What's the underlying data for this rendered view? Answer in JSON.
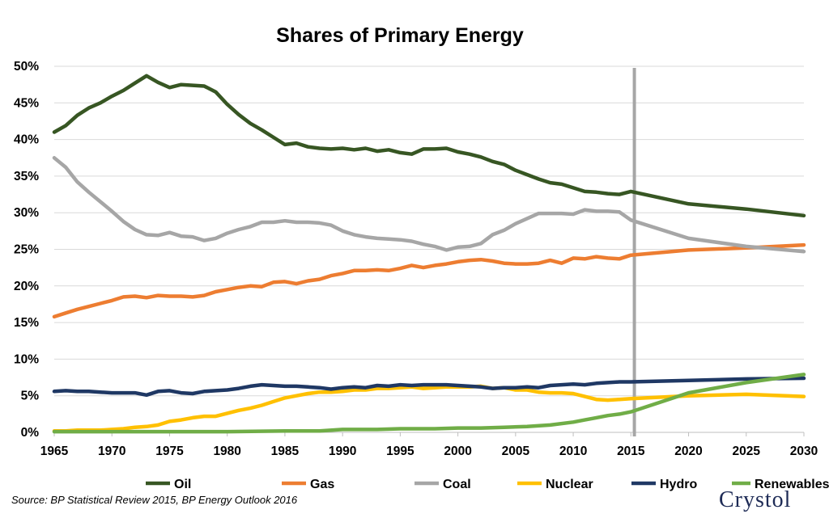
{
  "chart_data": {
    "type": "line",
    "title": "Shares of Primary Energy",
    "xlabel": "",
    "ylabel": "",
    "xlim": [
      1965,
      2030
    ],
    "ylim": [
      0,
      50
    ],
    "x_ticks": [
      "1965",
      "1970",
      "1975",
      "1980",
      "1985",
      "1990",
      "1995",
      "2000",
      "2005",
      "2010",
      "2015",
      "2020",
      "2025",
      "2030"
    ],
    "y_ticks": [
      "0%",
      "5%",
      "10%",
      "15%",
      "20%",
      "25%",
      "30%",
      "35%",
      "40%",
      "45%",
      "50%"
    ],
    "grid": "horizontal",
    "legend_position": "bottom",
    "marker_line": {
      "x": 2015.3,
      "color": "#a6a6a6"
    },
    "series": [
      {
        "name": "Oil",
        "color": "#375623",
        "points": [
          [
            1965,
            41.0
          ],
          [
            1966,
            41.9
          ],
          [
            1967,
            43.3
          ],
          [
            1968,
            44.3
          ],
          [
            1969,
            45.0
          ],
          [
            1970,
            45.9
          ],
          [
            1971,
            46.7
          ],
          [
            1972,
            47.7
          ],
          [
            1973,
            48.7
          ],
          [
            1974,
            47.8
          ],
          [
            1975,
            47.1
          ],
          [
            1976,
            47.5
          ],
          [
            1977,
            47.4
          ],
          [
            1978,
            47.3
          ],
          [
            1979,
            46.5
          ],
          [
            1980,
            44.8
          ],
          [
            1981,
            43.4
          ],
          [
            1982,
            42.2
          ],
          [
            1983,
            41.3
          ],
          [
            1984,
            40.3
          ],
          [
            1985,
            39.3
          ],
          [
            1986,
            39.5
          ],
          [
            1987,
            39.0
          ],
          [
            1988,
            38.8
          ],
          [
            1989,
            38.7
          ],
          [
            1990,
            38.8
          ],
          [
            1991,
            38.6
          ],
          [
            1992,
            38.8
          ],
          [
            1993,
            38.4
          ],
          [
            1994,
            38.6
          ],
          [
            1995,
            38.2
          ],
          [
            1996,
            38.0
          ],
          [
            1997,
            38.7
          ],
          [
            1998,
            38.7
          ],
          [
            1999,
            38.8
          ],
          [
            2000,
            38.3
          ],
          [
            2001,
            38.0
          ],
          [
            2002,
            37.6
          ],
          [
            2003,
            37.0
          ],
          [
            2004,
            36.6
          ],
          [
            2005,
            35.8
          ],
          [
            2006,
            35.2
          ],
          [
            2007,
            34.6
          ],
          [
            2008,
            34.1
          ],
          [
            2009,
            33.9
          ],
          [
            2010,
            33.4
          ],
          [
            2011,
            32.9
          ],
          [
            2012,
            32.8
          ],
          [
            2013,
            32.6
          ],
          [
            2014,
            32.5
          ],
          [
            2015,
            32.9
          ],
          [
            2020,
            31.2
          ],
          [
            2025,
            30.5
          ],
          [
            2030,
            29.6
          ]
        ]
      },
      {
        "name": "Gas",
        "color": "#ed7d31",
        "points": [
          [
            1965,
            15.8
          ],
          [
            1966,
            16.3
          ],
          [
            1967,
            16.8
          ],
          [
            1968,
            17.2
          ],
          [
            1969,
            17.6
          ],
          [
            1970,
            18.0
          ],
          [
            1971,
            18.5
          ],
          [
            1972,
            18.6
          ],
          [
            1973,
            18.4
          ],
          [
            1974,
            18.7
          ],
          [
            1975,
            18.6
          ],
          [
            1976,
            18.6
          ],
          [
            1977,
            18.5
          ],
          [
            1978,
            18.7
          ],
          [
            1979,
            19.2
          ],
          [
            1980,
            19.5
          ],
          [
            1981,
            19.8
          ],
          [
            1982,
            20.0
          ],
          [
            1983,
            19.9
          ],
          [
            1984,
            20.5
          ],
          [
            1985,
            20.6
          ],
          [
            1986,
            20.3
          ],
          [
            1987,
            20.7
          ],
          [
            1988,
            20.9
          ],
          [
            1989,
            21.4
          ],
          [
            1990,
            21.7
          ],
          [
            1991,
            22.1
          ],
          [
            1992,
            22.1
          ],
          [
            1993,
            22.2
          ],
          [
            1994,
            22.1
          ],
          [
            1995,
            22.4
          ],
          [
            1996,
            22.8
          ],
          [
            1997,
            22.5
          ],
          [
            1998,
            22.8
          ],
          [
            1999,
            23.0
          ],
          [
            2000,
            23.3
          ],
          [
            2001,
            23.5
          ],
          [
            2002,
            23.6
          ],
          [
            2003,
            23.4
          ],
          [
            2004,
            23.1
          ],
          [
            2005,
            23.0
          ],
          [
            2006,
            23.0
          ],
          [
            2007,
            23.1
          ],
          [
            2008,
            23.5
          ],
          [
            2009,
            23.1
          ],
          [
            2010,
            23.8
          ],
          [
            2011,
            23.7
          ],
          [
            2012,
            24.0
          ],
          [
            2013,
            23.8
          ],
          [
            2014,
            23.7
          ],
          [
            2015,
            24.2
          ],
          [
            2020,
            24.9
          ],
          [
            2025,
            25.2
          ],
          [
            2030,
            25.6
          ]
        ]
      },
      {
        "name": "Coal",
        "color": "#a6a6a6",
        "points": [
          [
            1965,
            37.5
          ],
          [
            1966,
            36.2
          ],
          [
            1967,
            34.2
          ],
          [
            1968,
            32.8
          ],
          [
            1969,
            31.5
          ],
          [
            1970,
            30.2
          ],
          [
            1971,
            28.8
          ],
          [
            1972,
            27.7
          ],
          [
            1973,
            27.0
          ],
          [
            1974,
            26.9
          ],
          [
            1975,
            27.3
          ],
          [
            1976,
            26.8
          ],
          [
            1977,
            26.7
          ],
          [
            1978,
            26.2
          ],
          [
            1979,
            26.5
          ],
          [
            1980,
            27.2
          ],
          [
            1981,
            27.7
          ],
          [
            1982,
            28.1
          ],
          [
            1983,
            28.7
          ],
          [
            1984,
            28.7
          ],
          [
            1985,
            28.9
          ],
          [
            1986,
            28.7
          ],
          [
            1987,
            28.7
          ],
          [
            1988,
            28.6
          ],
          [
            1989,
            28.3
          ],
          [
            1990,
            27.5
          ],
          [
            1991,
            27.0
          ],
          [
            1992,
            26.7
          ],
          [
            1993,
            26.5
          ],
          [
            1994,
            26.4
          ],
          [
            1995,
            26.3
          ],
          [
            1996,
            26.1
          ],
          [
            1997,
            25.7
          ],
          [
            1998,
            25.4
          ],
          [
            1999,
            24.9
          ],
          [
            2000,
            25.3
          ],
          [
            2001,
            25.4
          ],
          [
            2002,
            25.8
          ],
          [
            2003,
            27.0
          ],
          [
            2004,
            27.6
          ],
          [
            2005,
            28.5
          ],
          [
            2006,
            29.2
          ],
          [
            2007,
            29.9
          ],
          [
            2008,
            29.9
          ],
          [
            2009,
            29.9
          ],
          [
            2010,
            29.8
          ],
          [
            2011,
            30.4
          ],
          [
            2012,
            30.2
          ],
          [
            2013,
            30.2
          ],
          [
            2014,
            30.1
          ],
          [
            2015,
            29.0
          ],
          [
            2020,
            26.5
          ],
          [
            2025,
            25.4
          ],
          [
            2030,
            24.7
          ]
        ]
      },
      {
        "name": "Nuclear",
        "color": "#ffc000",
        "points": [
          [
            1965,
            0.2
          ],
          [
            1966,
            0.2
          ],
          [
            1967,
            0.3
          ],
          [
            1968,
            0.3
          ],
          [
            1969,
            0.3
          ],
          [
            1970,
            0.4
          ],
          [
            1971,
            0.5
          ],
          [
            1972,
            0.7
          ],
          [
            1973,
            0.8
          ],
          [
            1974,
            1.0
          ],
          [
            1975,
            1.5
          ],
          [
            1976,
            1.7
          ],
          [
            1977,
            2.0
          ],
          [
            1978,
            2.2
          ],
          [
            1979,
            2.2
          ],
          [
            1980,
            2.6
          ],
          [
            1981,
            3.0
          ],
          [
            1982,
            3.3
          ],
          [
            1983,
            3.7
          ],
          [
            1984,
            4.2
          ],
          [
            1985,
            4.7
          ],
          [
            1986,
            5.0
          ],
          [
            1987,
            5.3
          ],
          [
            1988,
            5.5
          ],
          [
            1989,
            5.5
          ],
          [
            1990,
            5.6
          ],
          [
            1991,
            5.8
          ],
          [
            1992,
            5.8
          ],
          [
            1993,
            6.0
          ],
          [
            1994,
            6.0
          ],
          [
            1995,
            6.1
          ],
          [
            1996,
            6.2
          ],
          [
            1997,
            6.0
          ],
          [
            1998,
            6.1
          ],
          [
            1999,
            6.2
          ],
          [
            2000,
            6.2
          ],
          [
            2001,
            6.2
          ],
          [
            2002,
            6.3
          ],
          [
            2003,
            6.0
          ],
          [
            2004,
            6.1
          ],
          [
            2005,
            5.8
          ],
          [
            2006,
            5.8
          ],
          [
            2007,
            5.5
          ],
          [
            2008,
            5.4
          ],
          [
            2009,
            5.4
          ],
          [
            2010,
            5.3
          ],
          [
            2011,
            4.9
          ],
          [
            2012,
            4.5
          ],
          [
            2013,
            4.4
          ],
          [
            2014,
            4.5
          ],
          [
            2015,
            4.6
          ],
          [
            2020,
            5.0
          ],
          [
            2025,
            5.2
          ],
          [
            2030,
            4.9
          ]
        ]
      },
      {
        "name": "Hydro",
        "color": "#1f3864",
        "points": [
          [
            1965,
            5.6
          ],
          [
            1966,
            5.7
          ],
          [
            1967,
            5.6
          ],
          [
            1968,
            5.6
          ],
          [
            1969,
            5.5
          ],
          [
            1970,
            5.4
          ],
          [
            1971,
            5.4
          ],
          [
            1972,
            5.4
          ],
          [
            1973,
            5.1
          ],
          [
            1974,
            5.6
          ],
          [
            1975,
            5.7
          ],
          [
            1976,
            5.4
          ],
          [
            1977,
            5.3
          ],
          [
            1978,
            5.6
          ],
          [
            1979,
            5.7
          ],
          [
            1980,
            5.8
          ],
          [
            1981,
            6.0
          ],
          [
            1982,
            6.3
          ],
          [
            1983,
            6.5
          ],
          [
            1984,
            6.4
          ],
          [
            1985,
            6.3
          ],
          [
            1986,
            6.3
          ],
          [
            1987,
            6.2
          ],
          [
            1988,
            6.1
          ],
          [
            1989,
            5.9
          ],
          [
            1990,
            6.1
          ],
          [
            1991,
            6.2
          ],
          [
            1992,
            6.1
          ],
          [
            1993,
            6.4
          ],
          [
            1994,
            6.3
          ],
          [
            1995,
            6.5
          ],
          [
            1996,
            6.4
          ],
          [
            1997,
            6.5
          ],
          [
            1998,
            6.5
          ],
          [
            1999,
            6.5
          ],
          [
            2000,
            6.4
          ],
          [
            2001,
            6.3
          ],
          [
            2002,
            6.2
          ],
          [
            2003,
            6.0
          ],
          [
            2004,
            6.1
          ],
          [
            2005,
            6.1
          ],
          [
            2006,
            6.2
          ],
          [
            2007,
            6.1
          ],
          [
            2008,
            6.4
          ],
          [
            2009,
            6.5
          ],
          [
            2010,
            6.6
          ],
          [
            2011,
            6.5
          ],
          [
            2012,
            6.7
          ],
          [
            2013,
            6.8
          ],
          [
            2014,
            6.9
          ],
          [
            2015,
            6.9
          ],
          [
            2020,
            7.1
          ],
          [
            2025,
            7.3
          ],
          [
            2030,
            7.4
          ]
        ]
      },
      {
        "name": "Renewables",
        "color": "#70ad47",
        "points": [
          [
            1965,
            0.1
          ],
          [
            1970,
            0.1
          ],
          [
            1975,
            0.1
          ],
          [
            1980,
            0.1
          ],
          [
            1985,
            0.2
          ],
          [
            1988,
            0.2
          ],
          [
            1990,
            0.4
          ],
          [
            1993,
            0.4
          ],
          [
            1995,
            0.5
          ],
          [
            1998,
            0.5
          ],
          [
            2000,
            0.6
          ],
          [
            2002,
            0.6
          ],
          [
            2004,
            0.7
          ],
          [
            2006,
            0.8
          ],
          [
            2008,
            1.0
          ],
          [
            2010,
            1.4
          ],
          [
            2011,
            1.7
          ],
          [
            2012,
            2.0
          ],
          [
            2013,
            2.3
          ],
          [
            2014,
            2.5
          ],
          [
            2015,
            2.8
          ],
          [
            2020,
            5.4
          ],
          [
            2025,
            6.8
          ],
          [
            2030,
            7.9
          ]
        ]
      }
    ],
    "source_note": "Source: BP Statistical Review 2015, BP Energy Outlook 2016"
  },
  "logo": {
    "text": "Crystol"
  }
}
